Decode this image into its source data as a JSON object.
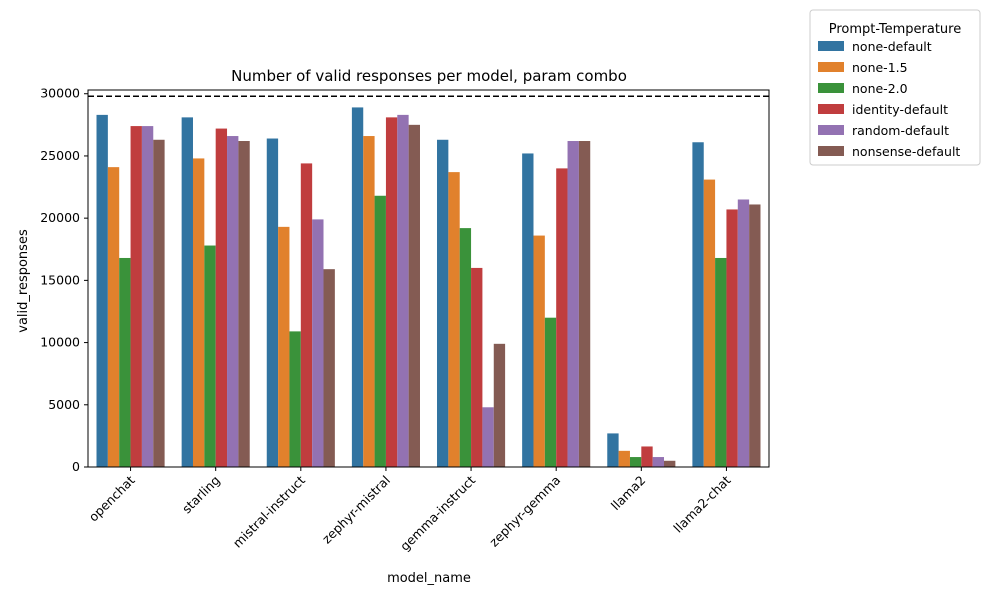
{
  "chart_data": {
    "type": "bar",
    "title": "Number of valid responses per model, param combo",
    "xlabel": "model_name",
    "ylabel": "valid_responses",
    "ylim": [
      0,
      30300
    ],
    "yticks": [
      0,
      5000,
      10000,
      15000,
      20000,
      25000,
      30000
    ],
    "reference_line": {
      "y": 29800,
      "style": "dashed",
      "color": "#000000"
    },
    "legend_title": "Prompt-Temperature",
    "legend_position": "outside-top-right",
    "categories": [
      "openchat",
      "starling",
      "mistral-instruct",
      "zephyr-mistral",
      "gemma-instruct",
      "zephyr-gemma",
      "llama2",
      "llama2-chat"
    ],
    "series": [
      {
        "name": "none-default",
        "color": "#3274a1",
        "values": [
          28300,
          28100,
          26400,
          28900,
          26300,
          25200,
          2700,
          26100
        ]
      },
      {
        "name": "none-1.5",
        "color": "#e1812c",
        "values": [
          24100,
          24800,
          19300,
          26600,
          23700,
          18600,
          1300,
          23100
        ]
      },
      {
        "name": "none-2.0",
        "color": "#3a923a",
        "values": [
          16800,
          17800,
          10900,
          21800,
          19200,
          12000,
          800,
          16800
        ]
      },
      {
        "name": "identity-default",
        "color": "#c03d3e",
        "values": [
          27400,
          27200,
          24400,
          28100,
          16000,
          24000,
          1650,
          20700
        ]
      },
      {
        "name": "random-default",
        "color": "#9372b2",
        "values": [
          27400,
          26600,
          19900,
          28300,
          4800,
          26200,
          800,
          21500
        ]
      },
      {
        "name": "nonsense-default",
        "color": "#845b53",
        "values": [
          26300,
          26200,
          15900,
          27500,
          9900,
          26200,
          500,
          21100
        ]
      }
    ]
  }
}
